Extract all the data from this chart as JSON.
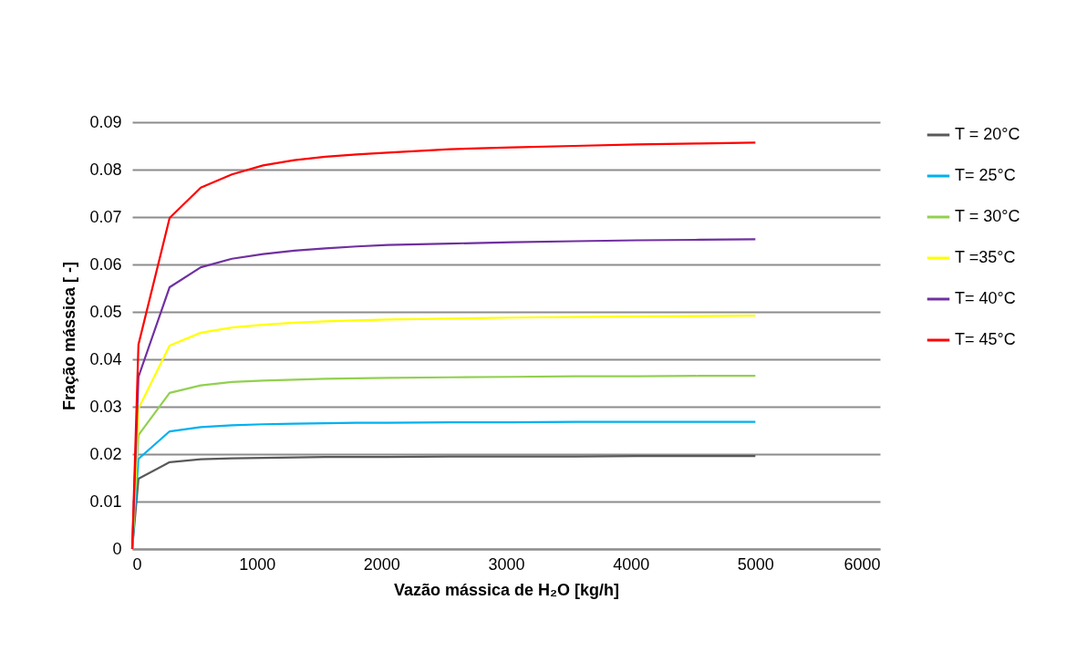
{
  "chart_data": {
    "type": "line",
    "xlabel": "Vazão mássica de H₂O [kg/h]",
    "ylabel": "Fração mássica [ -]",
    "x": [
      0,
      50,
      300,
      550,
      800,
      1050,
      1300,
      1550,
      1800,
      2050,
      2550,
      3050,
      3550,
      4050,
      4550,
      5000
    ],
    "series": [
      {
        "name": "T = 20°C",
        "color": "#595959",
        "values": [
          0,
          0.0148,
          0.0183,
          0.0189,
          0.0191,
          0.0192,
          0.0193,
          0.0194,
          0.0194,
          0.0194,
          0.0195,
          0.0195,
          0.0195,
          0.0196,
          0.0196,
          0.0196
        ]
      },
      {
        "name": "T= 25°C",
        "color": "#00b0f0",
        "values": [
          0,
          0.019,
          0.0248,
          0.0257,
          0.0261,
          0.0263,
          0.0264,
          0.0265,
          0.0266,
          0.0266,
          0.0267,
          0.0267,
          0.0268,
          0.0268,
          0.0268,
          0.0268
        ]
      },
      {
        "name": "T = 30°C",
        "color": "#92d050",
        "values": [
          0,
          0.024,
          0.0329,
          0.0345,
          0.0352,
          0.0355,
          0.0357,
          0.0359,
          0.036,
          0.0361,
          0.0362,
          0.0363,
          0.0364,
          0.0364,
          0.0365,
          0.0365
        ]
      },
      {
        "name": "T =35°C",
        "color": "#ffff00",
        "values": [
          0,
          0.0296,
          0.0429,
          0.0456,
          0.0467,
          0.0473,
          0.0477,
          0.048,
          0.0482,
          0.0484,
          0.0486,
          0.0488,
          0.0489,
          0.049,
          0.0491,
          0.0492
        ]
      },
      {
        "name": "T= 40°C",
        "color": "#7030a0",
        "values": [
          0,
          0.0363,
          0.0552,
          0.0594,
          0.0612,
          0.0622,
          0.0629,
          0.0634,
          0.0638,
          0.0641,
          0.0644,
          0.0647,
          0.0649,
          0.0651,
          0.0652,
          0.0653
        ]
      },
      {
        "name": "T= 45°C",
        "color": "#ff0000",
        "values": [
          0,
          0.0431,
          0.0698,
          0.0762,
          0.079,
          0.0809,
          0.082,
          0.0827,
          0.0832,
          0.0836,
          0.0843,
          0.0847,
          0.085,
          0.0853,
          0.0855,
          0.0857
        ]
      }
    ],
    "xlim": [
      0,
      6000
    ],
    "xticks": [
      0,
      1000,
      2000,
      3000,
      4000,
      5000,
      6000
    ],
    "ylim": [
      0,
      0.09
    ],
    "yticks": [
      0,
      0.01,
      0.02,
      0.03,
      0.04,
      0.05,
      0.06,
      0.07,
      0.08,
      0.09
    ],
    "grid": "y",
    "legend": "right",
    "marker": "none",
    "line_style": "solid"
  }
}
